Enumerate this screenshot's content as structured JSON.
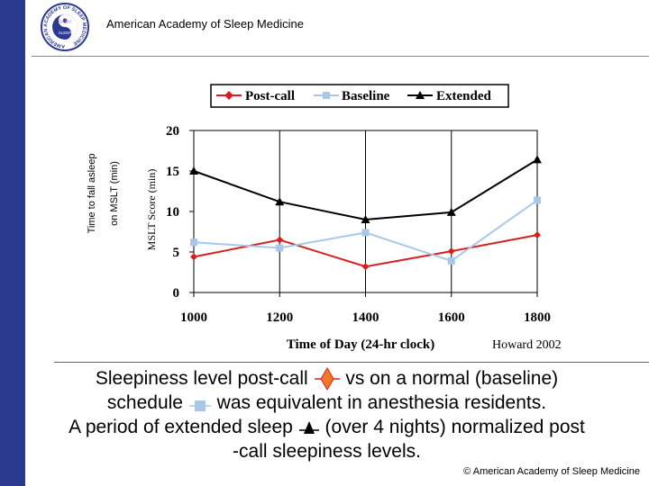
{
  "header": {
    "title": "American Academy of Sleep Medicine",
    "logo_text_ring": "AMERICAN ACADEMY OF SLEEP MEDICINE",
    "logo_center": "AASM",
    "logo_sub": "SLEEP"
  },
  "outer_ylabel": {
    "line1": "Time to fall asleep",
    "line2": "on MSLT (min)"
  },
  "chart_data": {
    "type": "line",
    "title": "",
    "xlabel": "Time of Day (24-hr clock)",
    "ylabel": "MSLT Score (min)",
    "categories": [
      "1000",
      "1200",
      "1400",
      "1600",
      "1800"
    ],
    "yticks": [
      "0",
      "5",
      "10",
      "15",
      "20"
    ],
    "ylim": [
      0,
      20
    ],
    "annotation": "Howard 2002",
    "legend": [
      "Post-call",
      "Baseline",
      "Extended"
    ],
    "series": [
      {
        "name": "Post-call",
        "color": "#d62020",
        "marker": "diamond",
        "values": [
          4.4,
          6.5,
          3.2,
          5.1,
          7.1
        ]
      },
      {
        "name": "Baseline",
        "color": "#a8c8ea",
        "marker": "square",
        "values": [
          6.2,
          5.5,
          7.4,
          3.9,
          11.4
        ]
      },
      {
        "name": "Extended",
        "color": "#000000",
        "marker": "triangle",
        "values": [
          15.0,
          11.2,
          9.0,
          9.9,
          16.4
        ]
      }
    ]
  },
  "caption": {
    "line1a": "Sleepiness level post-call",
    "line1b": "vs on a normal (baseline)",
    "line2a": "schedule",
    "line2b": "was equivalent in anesthesia residents.",
    "line3a": "A period of extended sleep",
    "line3b": "(over 4 nights) normalized post",
    "line4": "-call sleepiness levels."
  },
  "footer": {
    "copyright": "© American Academy of Sleep Medicine"
  }
}
